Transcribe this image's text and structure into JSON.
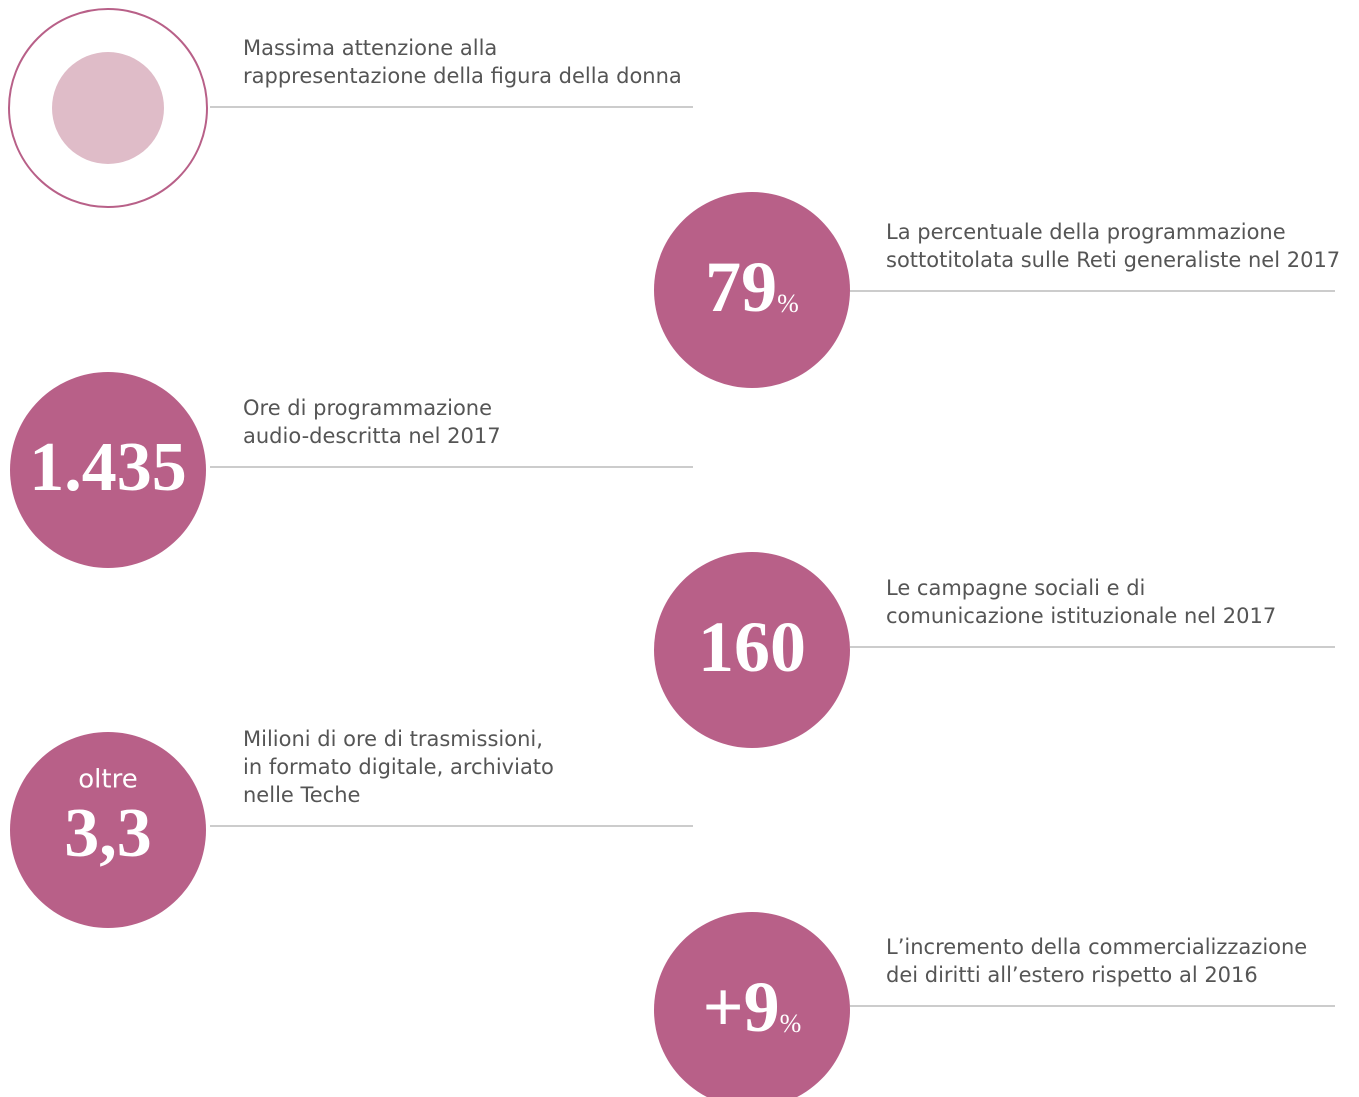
{
  "items": [
    {
      "description": [
        "Massima attenzione alla",
        "rappresentazione della figura della donna"
      ]
    },
    {
      "value": "79",
      "unit": "%",
      "description": [
        "La percentuale della programmazione",
        "sottotitolata sulle Reti generaliste nel 2017"
      ]
    },
    {
      "value": "1.435",
      "description": [
        "Ore di programmazione",
        "audio-descritta nel 2017"
      ]
    },
    {
      "value": "160",
      "description": [
        "Le campagne sociali e di",
        "comunicazione istituzionale nel 2017"
      ]
    },
    {
      "prefix": "oltre",
      "value": "3,3",
      "description": [
        "Milioni di ore di trasmissioni,",
        "in formato digitale, archiviato",
        "nelle Teche"
      ]
    },
    {
      "value": "+9",
      "unit": "%",
      "description": [
        "L’incremento della commercializzazione",
        "dei diritti all’estero rispetto al 2016"
      ]
    }
  ]
}
